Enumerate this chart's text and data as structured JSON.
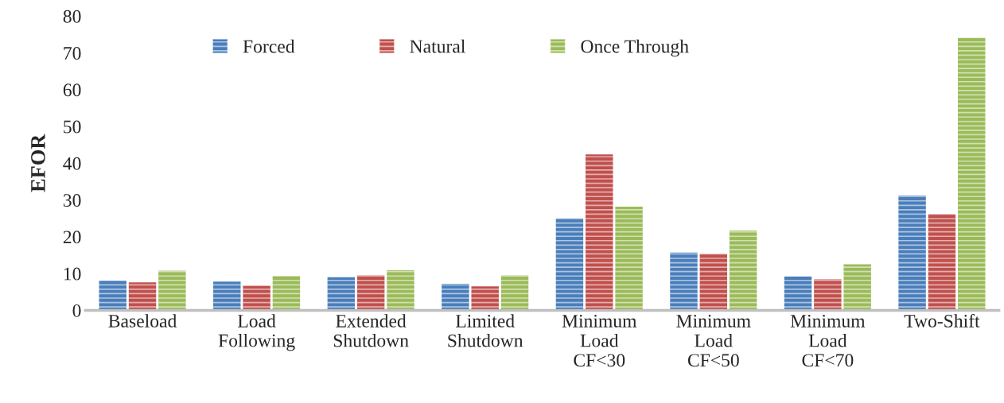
{
  "chart_data": {
    "type": "bar",
    "ylabel": "EFOR",
    "categories": [
      "Baseload",
      "Load\nFollowing",
      "Extended\nShutdown",
      "Limited\nShutdown",
      "Minimum\nLoad\nCF<30",
      "Minimum\nLoad\nCF<50",
      "Minimum\nLoad\nCF<70",
      "Two-Shift"
    ],
    "series": [
      {
        "name": "Forced",
        "color": "#4a7ebb",
        "values": [
          8.1,
          7.8,
          9.0,
          7.2,
          25.0,
          15.7,
          9.2,
          31.2
        ]
      },
      {
        "name": "Natural",
        "color": "#c0504d",
        "values": [
          7.6,
          6.7,
          9.5,
          6.5,
          42.4,
          15.4,
          8.4,
          26.2
        ]
      },
      {
        "name": "Once Through",
        "color": "#9bbb59",
        "values": [
          10.8,
          9.4,
          10.9,
          9.5,
          28.2,
          21.7,
          12.5,
          74.1
        ]
      }
    ],
    "ylim": [
      0,
      80
    ],
    "yticks": [
      0,
      10,
      20,
      30,
      40,
      50,
      60,
      70,
      80
    ],
    "grid": false,
    "legend": "top"
  }
}
